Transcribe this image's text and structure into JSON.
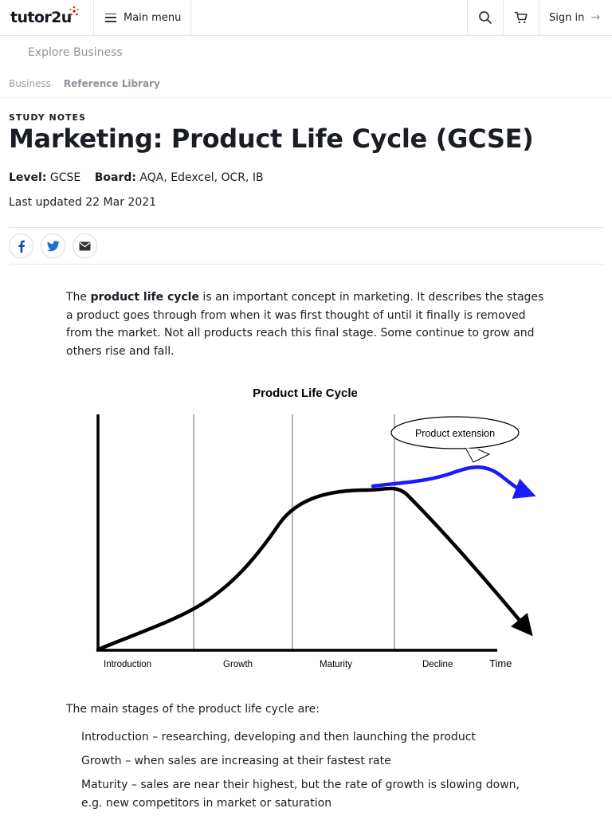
{
  "nav": {
    "logo": "tutor2u",
    "menu_label": "Main menu",
    "signin_label": "Sign in",
    "signin_arrow": "→",
    "icons": [
      "search-icon",
      "cart-icon"
    ]
  },
  "explore_link": "Explore Business",
  "breadcrumb": [
    "Business",
    "Reference Library"
  ],
  "article": {
    "kicker": "STUDY NOTES",
    "title": "Marketing: Product Life Cycle (GCSE)",
    "level_label": "Level:",
    "level_value": "GCSE",
    "board_label": "Board:",
    "board_value": "AQA, Edexcel, OCR, IB",
    "updated": "Last updated 22 Mar 2021",
    "share_icons": [
      "facebook-icon",
      "twitter-icon",
      "email-icon"
    ],
    "intro_pre": "The ",
    "intro_bold": "product life cycle",
    "intro_post": " is an important concept in marketing. It describes the stages a product goes through from when it was first thought of until it finally is removed from the market. Not all products reach this final stage. Some continue to grow and others rise and fall.",
    "stages_intro": "The main stages of the product life cycle are:",
    "stages": [
      "Introduction – researching, developing and then launching the product",
      "Growth – when sales are increasing at their fastest rate",
      "Maturity – sales are near their highest, but the rate of growth is slowing down, e.g. new competitors in market or saturation"
    ]
  },
  "diagram": {
    "title": "Product Life Cycle",
    "callout": "Product extension",
    "stage_labels": [
      "Introduction",
      "Growth",
      "Maturity",
      "Decline"
    ],
    "axis_label": "Time",
    "colors": {
      "curve": "#000000",
      "extension": "#1a1aff",
      "dividers": "#888888"
    }
  }
}
